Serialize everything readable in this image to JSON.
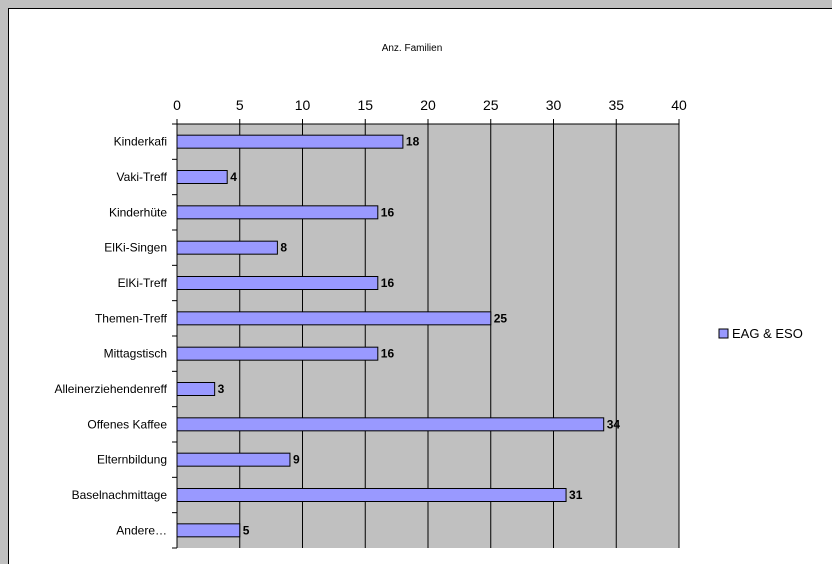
{
  "chart_data": {
    "type": "bar",
    "orientation": "horizontal",
    "title": "Anz. Familien",
    "categories": [
      "Kinderkafi",
      "Vaki-Treff",
      "Kinderhüte",
      "ElKi-Singen",
      "ElKi-Treff",
      "Themen-Treff",
      "Mittagstisch",
      "Alleinerziehendenreff",
      "Offenes Kaffee",
      "Elternbildung",
      "Baselnachmittage",
      "Andere…"
    ],
    "series": [
      {
        "name": "EAG & ESO",
        "values": [
          18,
          4,
          16,
          8,
          16,
          25,
          16,
          3,
          34,
          9,
          31,
          5
        ],
        "color": "#9999ff"
      }
    ],
    "xlim": [
      0,
      40
    ],
    "xticks": [
      0,
      5,
      10,
      15,
      20,
      25,
      30,
      35,
      40
    ],
    "x_axis_position": "top",
    "grid": true,
    "plot_background": "#c0c0c0",
    "legend_position": "right"
  }
}
